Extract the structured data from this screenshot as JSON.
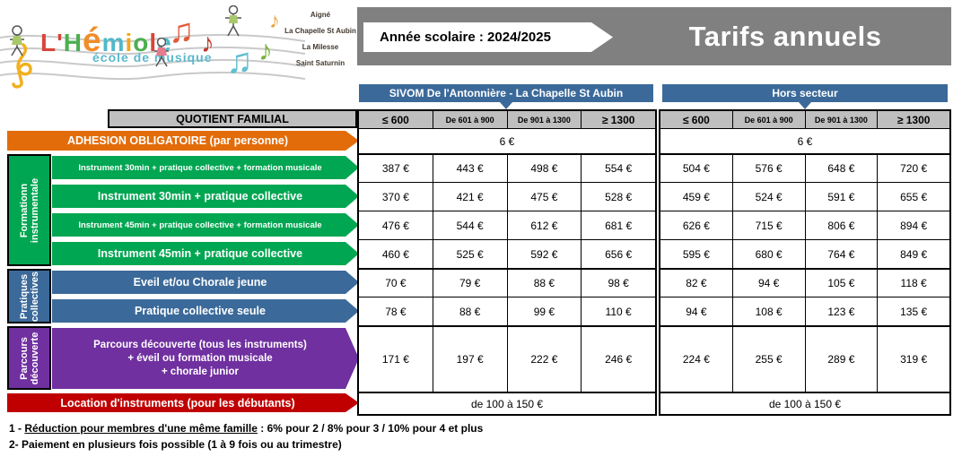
{
  "logo": {
    "title": "L'Hémiole",
    "title_letters": [
      {
        "text": "L'",
        "color": "#D9453A"
      },
      {
        "text": "H",
        "color": "#4CAF50"
      },
      {
        "text": "é",
        "color": "#F28C28",
        "big": true
      },
      {
        "text": "m",
        "color": "#4FB8C9"
      },
      {
        "text": "i",
        "color": "#F2A71B"
      },
      {
        "text": "o",
        "color": "#4CAF50"
      },
      {
        "text": "l",
        "color": "#D9453A"
      },
      {
        "text": "e",
        "color": "#4FB8C9"
      }
    ],
    "subtitle": "école de musique",
    "towns": [
      "Aigné",
      "La Chapelle St Aubin",
      "La Milesse",
      "Saint Saturnin"
    ]
  },
  "banner": {
    "school_year_label": "Année scolaire :  2024/2025",
    "title": "Tarifs annuels",
    "bg_color": "#808080"
  },
  "table": {
    "group_headers": [
      "SIVOM De l'Antonnière - La Chapelle St Aubin",
      "Hors secteur"
    ],
    "quotient_label": "QUOTIENT FAMILIAL",
    "col_headers": [
      "≤ 600",
      "De 601 à 900",
      "De 901 à 1300",
      "≥ 1300"
    ],
    "adhesion": {
      "label": "ADHESION OBLIGATOIRE  (par personne)",
      "sivom": "6 €",
      "hors": "6 €"
    },
    "section_labels": {
      "formation": [
        "Formationn",
        "instrumentale"
      ],
      "pratiques": [
        "Pratiques",
        "collectives"
      ],
      "parcours": [
        "Parcours",
        "découverte"
      ]
    },
    "rows": [
      {
        "label": "Instrument 30min + pratique collective + formation musicale",
        "values": [
          "387 €",
          "443 €",
          "498 €",
          "554 €",
          "504 €",
          "576 €",
          "648 €",
          "720 €"
        ]
      },
      {
        "label": "Instrument 30min + pratique collective",
        "values": [
          "370 €",
          "421 €",
          "475 €",
          "528 €",
          "459 €",
          "524 €",
          "591 €",
          "655 €"
        ]
      },
      {
        "label": "Instrument 45min + pratique collective + formation musicale",
        "values": [
          "476 €",
          "544 €",
          "612 €",
          "681 €",
          "626 €",
          "715 €",
          "806 €",
          "894 €"
        ]
      },
      {
        "label": "Instrument 45min + pratique collective",
        "values": [
          "460 €",
          "525 €",
          "592 €",
          "656 €",
          "595 €",
          "680 €",
          "764 €",
          "849 €"
        ]
      },
      {
        "label": "Eveil et/ou Chorale jeune",
        "values": [
          "70 €",
          "79 €",
          "88 €",
          "98 €",
          "82 €",
          "94 €",
          "105 €",
          "118 €"
        ]
      },
      {
        "label": "Pratique collective seule",
        "values": [
          "78 €",
          "88 €",
          "99 €",
          "110 €",
          "94 €",
          "108 €",
          "123 €",
          "135 €"
        ]
      },
      {
        "label_lines": [
          "Parcours découverte (tous les instruments)",
          "+ éveil ou formation musicale",
          "+ chorale junior"
        ],
        "values": [
          "171 €",
          "197 €",
          "222 €",
          "246 €",
          "224 €",
          "255 €",
          "289 €",
          "319 €"
        ]
      }
    ],
    "location": {
      "label": "Location d'instruments  (pour les débutants)",
      "sivom": "de 100 à 150 €",
      "hors": "de 100 à 150 €"
    }
  },
  "footnotes": {
    "line1_prefix": "1 - ",
    "line1_underlined": "Réduction pour membres d'une même famille",
    "line1_rest": " : 6% pour 2   /   8% pour 3   /   10% pour 4 et plus",
    "line2": "2- Paiement en plusieurs fois possible (1 à 9 fois ou au trimestre)"
  },
  "colors": {
    "banner_gray": "#808080",
    "steel_blue": "#3B6A9A",
    "header_gray": "#BFBFBF",
    "orange": "#E36C0A",
    "green": "#00A651",
    "purple": "#7030A0",
    "red": "#C00000"
  }
}
